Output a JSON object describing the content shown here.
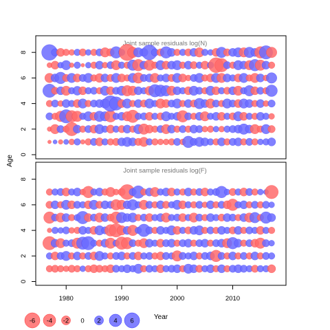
{
  "chart_data": [
    {
      "type": "scatter",
      "title": "Joint sample residuals log(N)",
      "xlabel": "",
      "ylabel": "Age",
      "xlim": [
        1975,
        2018
      ],
      "ylim": [
        -0.3,
        8.8
      ],
      "yticks": [
        "0",
        "2",
        "4",
        "6",
        "8"
      ],
      "ages": [
        1,
        2,
        3,
        4,
        5,
        6,
        7,
        8
      ],
      "years": [
        1977,
        2017
      ],
      "encoding": "bubble area ~ |residual|; red = negative, blue = positive",
      "residual_rows": {
        "8": [
          5.5,
          1.2,
          -1.5,
          -1.0,
          -0.8,
          1.0,
          -1.2,
          0.8,
          -1.0,
          1.2,
          -2.0,
          -1.3,
          3.0,
          1.0,
          -6.0,
          -2.5,
          2.0,
          1.5,
          5.0,
          1.2,
          -1.2,
          3.0,
          1.5,
          -1.0,
          1.0,
          -1.2,
          1.5,
          -2.0,
          1.0,
          0.8,
          -1.5,
          2.5,
          -1.2,
          1.5,
          2.0,
          -2.0,
          2.5,
          1.5,
          -3.0,
          4.0,
          -2.5
        ],
        "7": [
          -0.6,
          -1.5,
          0.8,
          2.0,
          -0.5,
          1.0,
          -0.3,
          0.8,
          -1.0,
          1.5,
          -0.8,
          1.2,
          -2.0,
          1.0,
          -1.0,
          2.5,
          -3.0,
          1.5,
          -2.5,
          -1.0,
          2.0,
          -1.5,
          1.5,
          2.0,
          -1.0,
          1.5,
          -1.2,
          1.0,
          -1.5,
          1.0,
          -5.0,
          -4.0,
          1.2,
          -1.0,
          2.0,
          1.5,
          -2.0,
          3.0,
          -2.5,
          1.5,
          -1.0
        ],
        "6": [
          -2.0,
          1.5,
          3.0,
          -1.2,
          2.0,
          -1.5,
          1.2,
          2.0,
          -1.0,
          -1.8,
          1.5,
          -1.2,
          2.0,
          -1.5,
          -1.0,
          2.0,
          -2.5,
          1.2,
          1.5,
          -2.0,
          1.0,
          1.5,
          -1.2,
          2.0,
          -1.5,
          -0.8,
          1.2,
          2.0,
          -1.0,
          -1.5,
          2.0,
          -2.0,
          1.5,
          1.0,
          -1.5,
          2.0,
          -1.0,
          -2.0,
          1.5,
          -0.8,
          2.5
        ],
        "5": [
          4.0,
          -1.2,
          1.5,
          -2.0,
          1.0,
          1.8,
          -1.5,
          1.0,
          1.2,
          -1.0,
          2.0,
          -1.5,
          1.2,
          2.0,
          -2.5,
          -2.0,
          1.5,
          1.0,
          -1.8,
          3.5,
          3.0,
          2.5,
          -2.0,
          1.5,
          1.0,
          -1.5,
          2.0,
          1.2,
          -1.0,
          2.0,
          -1.5,
          1.0,
          -1.2,
          1.5,
          -2.0,
          1.0,
          2.5,
          -1.5,
          1.2,
          -1.0,
          3.0
        ],
        "4": [
          -1.0,
          1.2,
          -0.8,
          1.5,
          1.0,
          -1.5,
          2.0,
          -1.0,
          1.2,
          1.5,
          2.0,
          5.5,
          4.0,
          -1.5,
          2.0,
          -1.0,
          1.5,
          -1.2,
          2.0,
          1.0,
          -2.0,
          -1.5,
          1.2,
          2.0,
          -1.0,
          1.5,
          -1.2,
          2.5,
          1.5,
          -2.0,
          1.2,
          -1.0,
          2.0,
          1.2,
          -1.5,
          2.0,
          1.5,
          -1.0,
          1.5,
          -0.8,
          1.2
        ],
        "3": [
          1.2,
          -1.0,
          -2.5,
          4.0,
          -3.0,
          -2.5,
          1.0,
          2.0,
          -1.5,
          2.5,
          2.0,
          -3.0,
          1.0,
          1.5,
          -2.0,
          -3.5,
          1.0,
          1.2,
          -1.5,
          1.0,
          -1.2,
          2.0,
          1.0,
          1.5,
          -3.0,
          1.2,
          -1.0,
          1.5,
          -2.0,
          1.0,
          1.5,
          -1.5,
          1.0,
          -1.2,
          2.0,
          -1.5,
          1.0,
          -1.0,
          1.5,
          1.0,
          -0.8
        ],
        "2": [
          -0.5,
          -2.0,
          1.2,
          -1.0,
          -4.0,
          1.5,
          -1.0,
          1.2,
          -1.5,
          2.0,
          1.0,
          -1.5,
          1.0,
          -1.2,
          1.5,
          -1.0,
          2.0,
          -2.5,
          -1.5,
          -1.0,
          1.2,
          -2.0,
          1.5,
          -1.0,
          1.2,
          -1.0,
          1.5,
          1.2,
          -0.8,
          -1.0,
          0.8,
          -0.8,
          1.0,
          1.2,
          1.5,
          2.5,
          1.5,
          -2.0,
          -1.0,
          2.0,
          -1.2
        ],
        "1": [
          -0.3,
          0.4,
          -0.5,
          0.6,
          -0.8,
          1.0,
          -0.5,
          -1.0,
          1.2,
          -1.5,
          1.0,
          -1.0,
          -1.2,
          1.5,
          2.0,
          1.5,
          -1.2,
          -2.0,
          1.0,
          -1.0,
          -0.8,
          -0.8,
          -1.0,
          1.2,
          -0.8,
          3.0,
          1.2,
          2.0,
          1.5,
          1.0,
          -1.0,
          1.5,
          -1.0,
          1.2,
          1.5,
          -1.0,
          1.2,
          -1.0,
          0.8,
          1.0,
          1.5
        ]
      }
    },
    {
      "type": "scatter",
      "title": "Joint sample residuals log(F)",
      "xlabel": "Year",
      "ylabel": "Age",
      "xlim": [
        1975,
        2018
      ],
      "ylim": [
        -0.3,
        8.8
      ],
      "xticks": [
        "1980",
        "1990",
        "2000",
        "2010"
      ],
      "yticks": [
        "0",
        "2",
        "4",
        "6",
        "8"
      ],
      "ages": [
        1,
        2,
        3,
        4,
        5,
        6,
        7
      ],
      "years": [
        1977,
        2017
      ],
      "encoding": "bubble area ~ |residual|; red = negative, blue = positive",
      "residual_rows": {
        "7": [
          -1.0,
          1.0,
          1.2,
          -1.5,
          1.0,
          1.5,
          -0.8,
          -3.0,
          1.0,
          1.5,
          -1.0,
          -2.0,
          -0.8,
          -1.2,
          -5.0,
          1.2,
          3.5,
          -1.0,
          1.5,
          -2.0,
          1.0,
          1.5,
          -1.5,
          1.0,
          -1.0,
          1.5,
          -1.0,
          1.2,
          -1.5,
          1.0,
          1.2,
          3.0,
          0.8,
          -1.2,
          1.0,
          -1.5,
          1.2,
          -1.0,
          0.8,
          0.6,
          -4.0
        ],
        "6": [
          -1.2,
          1.5,
          -1.0,
          2.0,
          -1.5,
          1.2,
          1.0,
          -1.5,
          2.0,
          -1.2,
          1.5,
          1.2,
          -2.5,
          -2.0,
          1.5,
          2.5,
          1.0,
          -2.0,
          1.2,
          -1.0,
          1.5,
          -1.2,
          1.0,
          2.0,
          -1.5,
          1.0,
          -1.0,
          1.2,
          -0.8,
          1.5,
          -1.0,
          1.2,
          -1.5,
          -3.0,
          1.0,
          1.5,
          -1.0,
          1.2,
          -1.0,
          1.2,
          0.8
        ],
        "5": [
          -3.0,
          1.2,
          -2.0,
          1.5,
          -1.0,
          1.0,
          3.5,
          -1.5,
          1.2,
          -2.0,
          1.5,
          -1.2,
          -3.0,
          2.5,
          1.5,
          2.0,
          -1.0,
          1.2,
          -1.5,
          1.0,
          1.5,
          -2.0,
          1.0,
          1.2,
          -1.5,
          1.0,
          -2.0,
          1.2,
          -1.0,
          1.5,
          1.0,
          -1.2,
          1.5,
          1.2,
          -1.0,
          1.5,
          -2.0,
          2.5,
          -1.0,
          3.0,
          1.5
        ],
        "4": [
          -0.5,
          1.0,
          0.8,
          1.2,
          -0.8,
          -1.0,
          1.5,
          1.0,
          -1.5,
          2.0,
          1.2,
          -3.0,
          -4.0,
          -2.0,
          1.5,
          -2.5,
          1.0,
          3.5,
          1.2,
          -1.0,
          1.5,
          1.0,
          2.0,
          -1.5,
          1.0,
          -1.2,
          1.5,
          2.0,
          -1.0,
          1.2,
          -1.0,
          1.5,
          1.0,
          -1.2,
          1.5,
          -1.0,
          1.2,
          1.0,
          -1.5,
          1.0,
          -1.0
        ],
        "3": [
          -4.0,
          1.5,
          -2.0,
          1.0,
          1.2,
          -2.5,
          3.5,
          4.0,
          1.0,
          -1.0,
          1.5,
          -2.5,
          1.0,
          -3.5,
          -3.0,
          1.2,
          -1.0,
          -2.0,
          1.5,
          1.0,
          -1.5,
          1.2,
          1.5,
          -1.0,
          1.2,
          1.5,
          -1.0,
          1.2,
          1.5,
          -1.0,
          1.2,
          1.5,
          -2.0,
          3.0,
          1.5,
          -1.0,
          1.2,
          -1.5,
          -2.5,
          1.2,
          0.8
        ],
        "2": [
          1.0,
          -1.5,
          1.2,
          2.0,
          -1.0,
          1.5,
          -1.0,
          1.2,
          -1.5,
          2.0,
          1.0,
          -1.0,
          1.2,
          1.5,
          -1.0,
          1.2,
          -1.5,
          1.0,
          1.2,
          -1.0,
          -1.5,
          1.2,
          1.0,
          -2.5,
          1.2,
          1.0,
          1.5,
          -1.0,
          1.2,
          1.5,
          -3.0,
          1.2,
          -1.0,
          1.5,
          -1.0,
          1.2,
          -1.0,
          1.5,
          -1.0,
          1.2,
          1.0
        ],
        "1": [
          -1.0,
          -1.2,
          -1.0,
          -0.8,
          -1.2,
          -1.0,
          0.8,
          -1.0,
          -1.5,
          -1.2,
          -1.0,
          -1.5,
          1.2,
          1.0,
          1.5,
          1.0,
          2.0,
          -1.0,
          1.2,
          1.0,
          -1.5,
          1.0,
          1.2,
          1.5,
          -1.0,
          2.0,
          1.5,
          -1.2,
          1.0,
          1.5,
          -1.0,
          1.5,
          -1.0,
          1.2,
          1.5,
          1.2,
          1.0,
          -1.2,
          1.0,
          1.0,
          -1.5
        ]
      }
    }
  ],
  "legend": {
    "items": [
      {
        "label": "-6",
        "value": -6
      },
      {
        "label": "-4",
        "value": -4
      },
      {
        "label": "-2",
        "value": -2
      },
      {
        "label": "0",
        "value": 0
      },
      {
        "label": "2",
        "value": 2
      },
      {
        "label": "4",
        "value": 4
      },
      {
        "label": "6",
        "value": 6
      }
    ]
  },
  "colors": {
    "negative_fill": "#ff6b6b",
    "negative_stroke": "#ff2a2a",
    "positive_fill": "#6b6bff",
    "positive_stroke": "#2a2aff",
    "title_text": "#777777",
    "axis": "#000000"
  }
}
